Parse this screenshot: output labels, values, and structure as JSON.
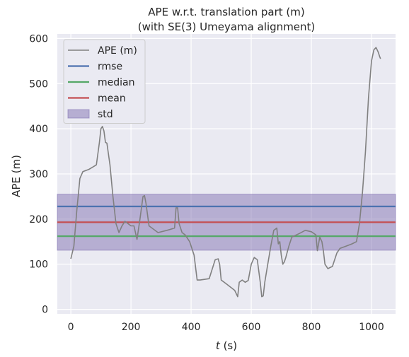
{
  "chart_data": {
    "type": "line",
    "title": "APE w.r.t. translation part (m)",
    "subtitle": "(with SE(3) Umeyama alignment)",
    "xlabel_italic": "t",
    "xlabel_unit": " (s)",
    "ylabel": "APE (m)",
    "xlim": [
      -45,
      1080
    ],
    "ylim": [
      -10,
      610
    ],
    "xticks": [
      0,
      200,
      400,
      600,
      800,
      1000
    ],
    "yticks": [
      0,
      100,
      200,
      300,
      400,
      500,
      600
    ],
    "grid": true,
    "legend_position": "top-left",
    "series": [
      {
        "name": "APE (m)",
        "color": "#808080",
        "x": [
          0,
          10,
          20,
          30,
          40,
          60,
          85,
          95,
          100,
          105,
          110,
          115,
          120,
          130,
          140,
          150,
          160,
          170,
          180,
          190,
          200,
          210,
          220,
          230,
          240,
          245,
          250,
          260,
          290,
          320,
          345,
          350,
          355,
          360,
          370,
          380,
          395,
          410,
          420,
          430,
          460,
          480,
          490,
          495,
          500,
          510,
          520,
          545,
          555,
          560,
          570,
          580,
          590,
          600,
          610,
          620,
          630,
          635,
          640,
          645,
          655,
          665,
          675,
          685,
          690,
          695,
          700,
          705,
          710,
          715,
          725,
          735,
          760,
          780,
          800,
          815,
          820,
          828,
          835,
          840,
          845,
          855,
          860,
          870,
          875,
          885,
          895,
          915,
          935,
          950,
          960,
          970,
          980,
          990,
          1000,
          1008,
          1015,
          1022,
          1027,
          1030
        ],
        "y": [
          112,
          140,
          220,
          290,
          305,
          310,
          320,
          370,
          400,
          405,
          395,
          370,
          368,
          320,
          250,
          190,
          170,
          185,
          195,
          190,
          185,
          185,
          155,
          200,
          250,
          252,
          235,
          185,
          170,
          175,
          180,
          225,
          225,
          190,
          170,
          165,
          150,
          120,
          65,
          65,
          68,
          110,
          112,
          100,
          65,
          60,
          55,
          42,
          28,
          60,
          65,
          60,
          64,
          100,
          115,
          110,
          60,
          28,
          30,
          60,
          100,
          140,
          175,
          180,
          145,
          150,
          120,
          100,
          105,
          115,
          140,
          160,
          168,
          175,
          172,
          165,
          130,
          160,
          150,
          130,
          100,
          90,
          92,
          95,
          105,
          125,
          135,
          140,
          145,
          150,
          190,
          260,
          350,
          470,
          550,
          575,
          580,
          570,
          560,
          555
        ]
      },
      {
        "name": "rmse",
        "color": "#4c72b0",
        "value": 228
      },
      {
        "name": "median",
        "color": "#55a868",
        "value": 162
      },
      {
        "name": "mean",
        "color": "#c44e52",
        "value": 193
      },
      {
        "name": "std",
        "color": "#8172b2",
        "band": [
          131,
          255
        ]
      }
    ]
  }
}
